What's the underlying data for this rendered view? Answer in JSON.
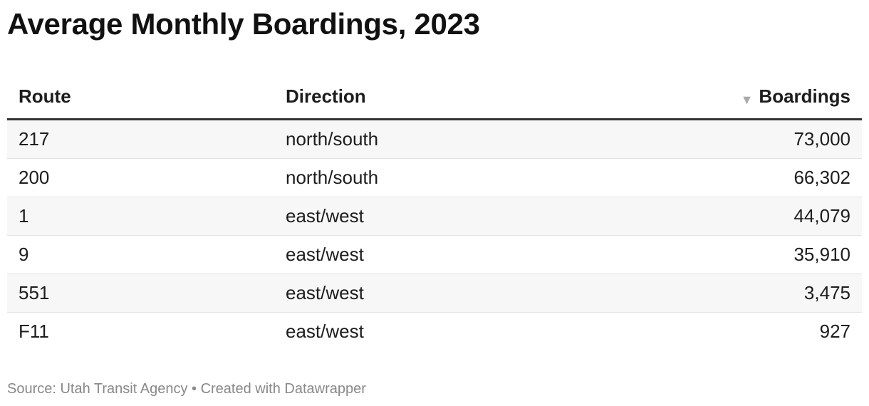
{
  "title": "Average Monthly Boardings, 2023",
  "headers": {
    "route": "Route",
    "direction": "Direction",
    "boardings": "Boardings",
    "sort_icon": "▼"
  },
  "chart_data": {
    "type": "table",
    "title": "Average Monthly Boardings, 2023",
    "columns": [
      "Route",
      "Direction",
      "Boardings"
    ],
    "sorted_by": "Boardings",
    "sort_order": "descending",
    "rows": [
      {
        "route": "217",
        "direction": "north/south",
        "boardings": "73,000"
      },
      {
        "route": "200",
        "direction": "north/south",
        "boardings": "66,302"
      },
      {
        "route": "1",
        "direction": "east/west",
        "boardings": "44,079"
      },
      {
        "route": "9",
        "direction": "east/west",
        "boardings": "35,910"
      },
      {
        "route": "551",
        "direction": "east/west",
        "boardings": "3,475"
      },
      {
        "route": "F11",
        "direction": "east/west",
        "boardings": "927"
      }
    ]
  },
  "footer": "Source: Utah Transit Agency • Created with Datawrapper",
  "colors": {
    "row_stripe": "#f7f7f7",
    "header_rule": "#333333",
    "footer_text": "#888888"
  }
}
